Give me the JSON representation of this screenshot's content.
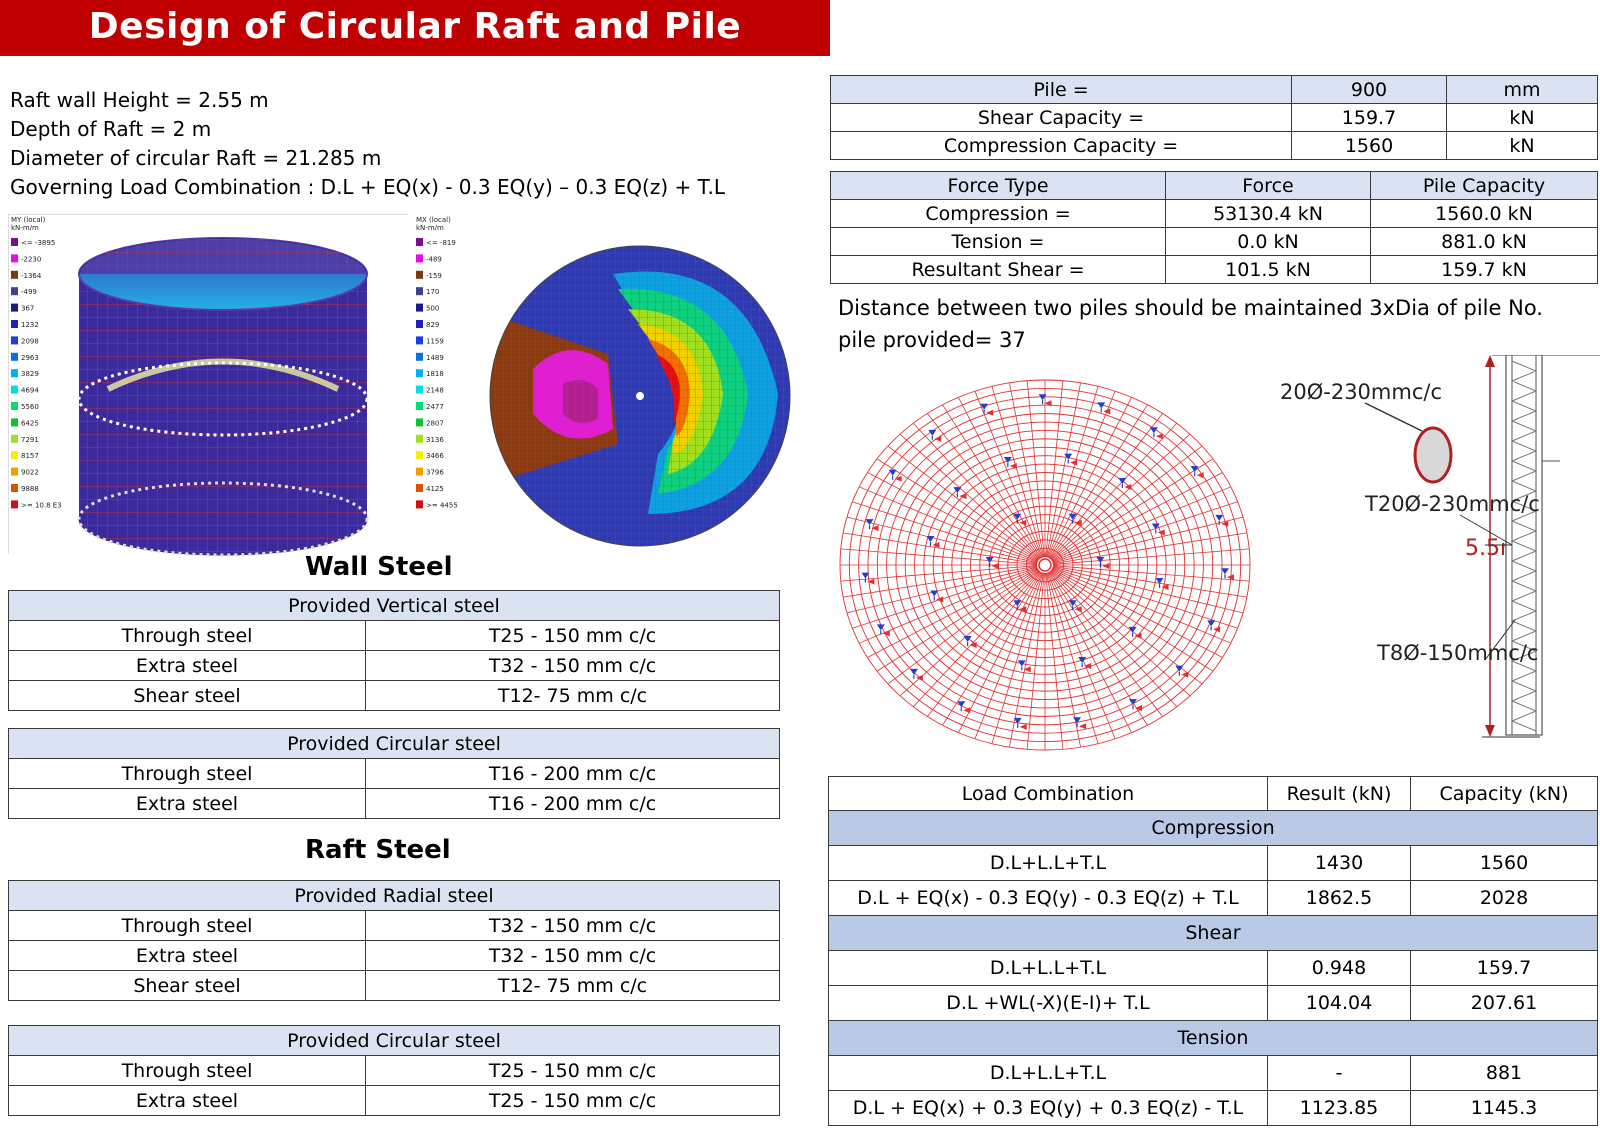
{
  "title": "Design of Circular Raft and Pile",
  "info": [
    "Raft wall Height = 2.55 m",
    "Depth of Raft = 2 m",
    "Diameter of circular Raft = 21.285 m",
    "Governing Load Combination : D.L + EQ(x) - 0.3 EQ(y) – 0.3 EQ(z) + T.L"
  ],
  "legend_my": {
    "title_line1": "MY (local)",
    "title_line2": "kN-m/m",
    "labels": [
      "<= -3895",
      "-2230",
      "-1364",
      "-499",
      "367",
      "1232",
      "2098",
      "2963",
      "3829",
      "4694",
      "5560",
      "6425",
      "7291",
      "8157",
      "9022",
      "9888",
      ">= 10.8 E3"
    ],
    "colors": [
      "#7a1090",
      "#e010e0",
      "#7a3a10",
      "#404090",
      "#1a1a8c",
      "#2020c0",
      "#1840e0",
      "#0a70e0",
      "#00b0f0",
      "#00e0e0",
      "#00e070",
      "#10c030",
      "#a0e020",
      "#f0f000",
      "#f0a000",
      "#e05000",
      "#d01010"
    ]
  },
  "legend_mx": {
    "title_line1": "MX (local)",
    "title_line2": "kN-m/m",
    "labels": [
      "<= -819",
      "-489",
      "-159",
      "170",
      "500",
      "829",
      "1159",
      "1489",
      "1818",
      "2148",
      "2477",
      "2807",
      "3136",
      "3466",
      "3796",
      "4125",
      ">= 4455"
    ],
    "colors": [
      "#7a1090",
      "#e010e0",
      "#7a3a10",
      "#404090",
      "#1a1a8c",
      "#2020c0",
      "#1840e0",
      "#0a70e0",
      "#00b0f0",
      "#00e0e0",
      "#00e070",
      "#10c030",
      "#a0e020",
      "#f0f000",
      "#f0a000",
      "#e05000",
      "#d01010"
    ]
  },
  "wall_steel_title": "Wall Steel",
  "raft_steel_title": "Raft Steel",
  "wall_vertical": {
    "header": "Provided Vertical steel",
    "rows": [
      [
        "Through steel",
        "T25 - 150 mm c/c"
      ],
      [
        "Extra steel",
        "T32 - 150 mm c/c"
      ],
      [
        "Shear steel",
        "T12- 75 mm c/c"
      ]
    ]
  },
  "wall_circular": {
    "header": "Provided Circular steel",
    "rows": [
      [
        "Through steel",
        "T16 - 200 mm c/c"
      ],
      [
        "Extra steel",
        "T16 - 200 mm c/c"
      ]
    ]
  },
  "raft_radial": {
    "header": "Provided Radial steel",
    "rows": [
      [
        "Through steel",
        "T32 - 150 mm c/c"
      ],
      [
        "Extra steel",
        "T32 - 150 mm c/c"
      ],
      [
        "Shear steel",
        "T12- 75 mm c/c"
      ]
    ]
  },
  "raft_circular": {
    "header": "Provided Circular steel",
    "rows": [
      [
        "Through steel",
        "T25 - 150 mm c/c"
      ],
      [
        "Extra steel",
        "T25 - 150 mm c/c"
      ]
    ]
  },
  "pile_props": {
    "rows": [
      [
        "Pile =",
        "900",
        "mm"
      ],
      [
        "Shear Capacity =",
        "159.7",
        "kN"
      ],
      [
        "Compression  Capacity =",
        "1560",
        "kN"
      ]
    ]
  },
  "force_table": {
    "headers": [
      "Force Type",
      "Force",
      "Pile Capacity"
    ],
    "rows": [
      [
        "Compression =",
        "53130.4  kN",
        "1560.0  kN"
      ],
      [
        "Tension =",
        "0.0  kN",
        "881.0  kN"
      ],
      [
        "Resultant Shear =",
        "101.5  kN",
        "159.7  kN"
      ]
    ]
  },
  "distance_note_line1": "Distance between two piles should be maintained 3xDia of pile No.",
  "distance_note_line2": "pile provided= 37",
  "pile_detail": {
    "label_main": "20Ø-230mmc/c",
    "label_t20": "T20Ø-230mmc/c",
    "label_height": "5.5m",
    "label_t8": "T8Ø-150mmc/c"
  },
  "load_table": {
    "headers": [
      "Load Combination",
      "Result (kN)",
      "Capacity (kN)"
    ],
    "groups": [
      {
        "name": "Compression",
        "rows": [
          [
            "D.L+L.L+T.L",
            "1430",
            "1560"
          ],
          [
            "D.L + EQ(x) - 0.3 EQ(y) - 0.3 EQ(z) + T.L",
            "1862.5",
            "2028"
          ]
        ]
      },
      {
        "name": "Shear",
        "rows": [
          [
            "D.L+L.L+T.L",
            "0.948",
            "159.7"
          ],
          [
            "D.L +WL(-X)(E-I)+ T.L",
            "104.04",
            "207.61"
          ]
        ]
      },
      {
        "name": "Tension",
        "rows": [
          [
            "D.L+L.L+T.L",
            "-",
            "881"
          ],
          [
            "D.L + EQ(x) + 0.3 EQ(y) + 0.3 EQ(z) - T.L",
            "1123.85",
            "1145.3"
          ]
        ]
      }
    ]
  },
  "colors": {
    "title_bar": "#c00000",
    "header_fill": "#dbe3f3",
    "section_fill": "#b9c9e6",
    "mesh_red": "#e03030"
  }
}
